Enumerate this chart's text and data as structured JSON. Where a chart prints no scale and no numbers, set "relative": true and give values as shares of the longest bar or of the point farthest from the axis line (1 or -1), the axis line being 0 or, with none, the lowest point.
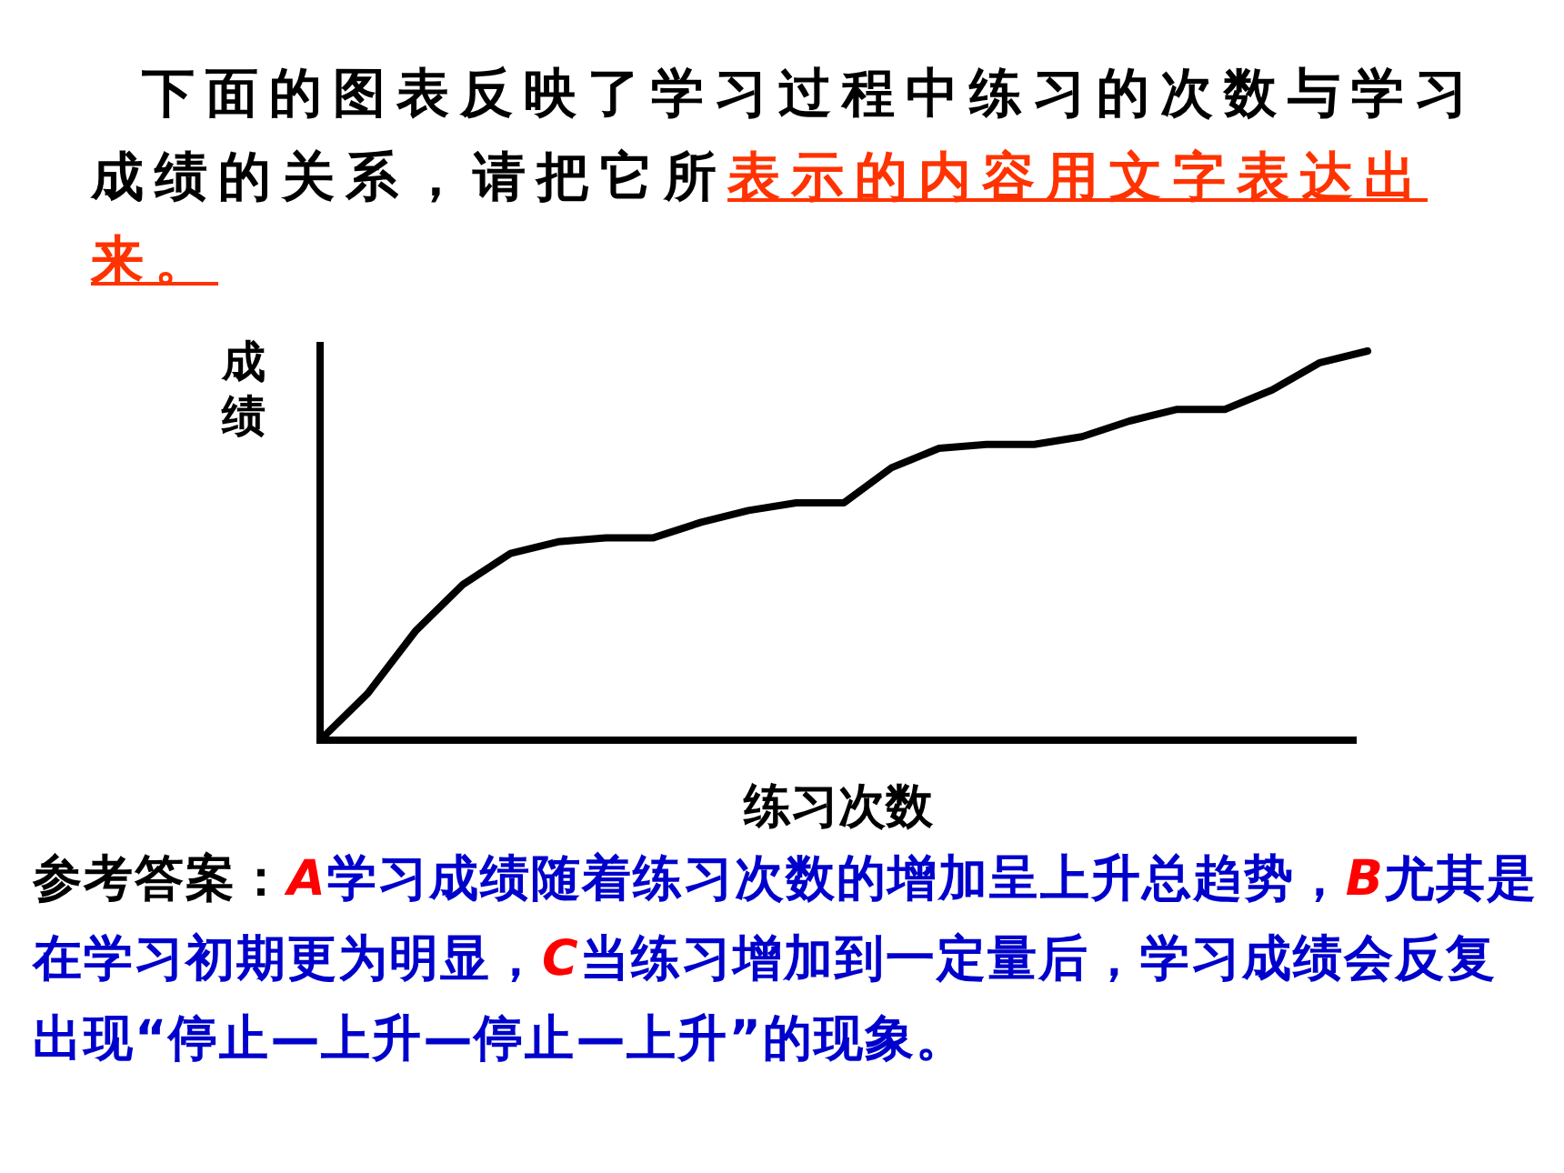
{
  "chart_data": {
    "type": "line",
    "title": "下面的图表反映了学习过程中练习的次数与学习成绩的关系，请把它所",
    "subtitle": "表示的内容用文字表达出来。",
    "xlabel": "练习次数",
    "ylabel": "成绩",
    "relative": true,
    "categories": [
      null,
      null,
      null,
      null,
      null,
      null,
      null,
      null,
      null,
      null,
      null,
      null,
      null,
      null,
      null,
      null,
      null,
      null,
      null,
      null,
      null,
      null,
      null
    ],
    "series": [
      {
        "color": "#000000",
        "values": [
          0,
          0.12,
          0.28,
          0.4,
          0.48,
          0.51,
          0.52,
          0.52,
          0.56,
          0.59,
          0.61,
          0.61,
          0.7,
          0.75,
          0.76,
          0.76,
          0.78,
          0.82,
          0.85,
          0.85,
          0.9,
          0.97,
          1
        ]
      }
    ],
    "annotations": [
      "参考答案：",
      "A",
      "学习成绩随着练习次数的增加呈上升总趋势，",
      "B",
      "尤其是在学习初期更为明显，",
      "C",
      "当练习增加到一定量后，学习成绩会反复出现“停止—上升—停止—上升”的现象。"
    ]
  }
}
